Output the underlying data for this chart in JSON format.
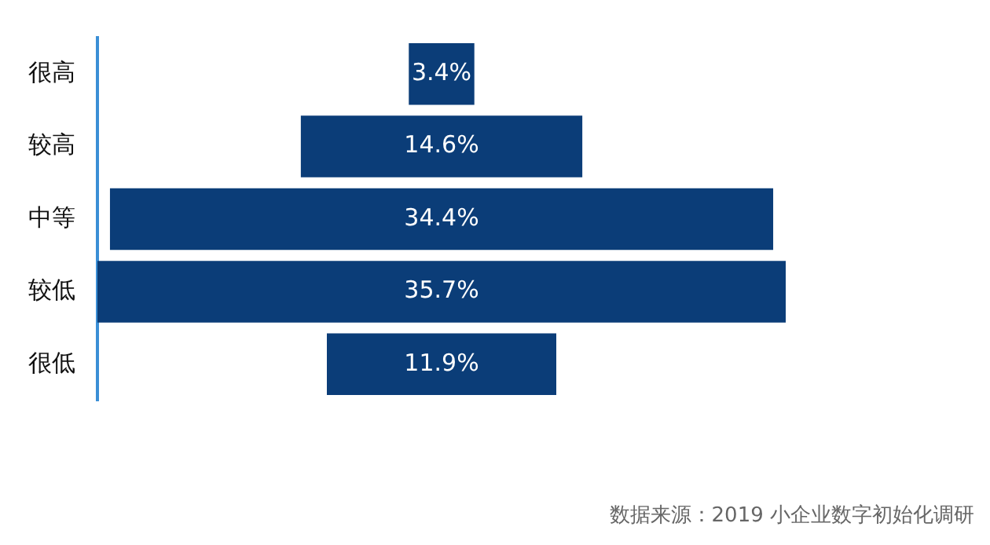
{
  "chart_data": {
    "type": "other",
    "categories": [
      "很高",
      "较高",
      "中等",
      "较低",
      "很低"
    ],
    "values": [
      3.4,
      14.6,
      34.4,
      35.7,
      11.9
    ],
    "value_labels": [
      "3.4%",
      "14.6%",
      "34.4%",
      "35.7%",
      "11.9%"
    ],
    "color": "#0b3d78",
    "legend": false,
    "annotations": [
      "数据来源：2019 小企业数字初始化调研"
    ]
  }
}
